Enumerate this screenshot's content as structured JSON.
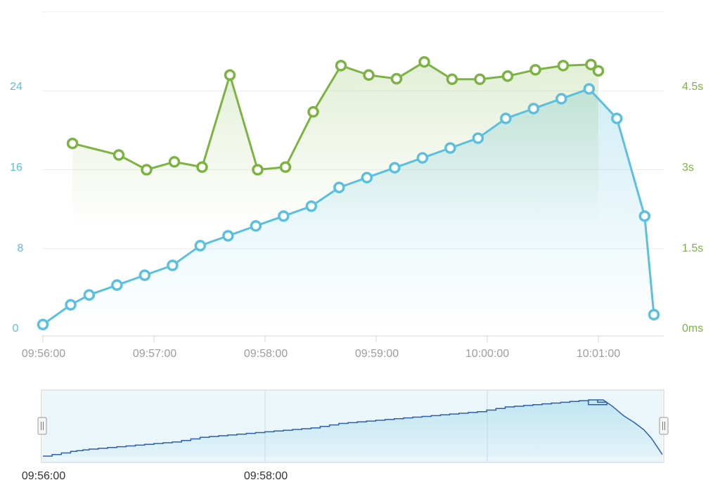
{
  "chart_data": [
    {
      "type": "line",
      "title": "",
      "x_labels": [
        "09:56:00",
        "09:57:00",
        "09:58:00",
        "09:59:00",
        "10:00:00",
        "10:01:00"
      ],
      "x_range_seconds": [
        0,
        300
      ],
      "y_left": {
        "ticks": [
          "0",
          "8",
          "16",
          "24"
        ],
        "range": [
          0,
          32
        ],
        "color": "#5bc0de"
      },
      "y_right": {
        "ticks": [
          "0ms",
          "1.5s",
          "3s",
          "4.5s"
        ],
        "range_seconds": [
          0,
          6
        ],
        "color": "#7cb342"
      },
      "grid": true,
      "series": [
        {
          "axis": "left",
          "color": "#5bc0de",
          "area": true,
          "points": [
            [
              0,
              0.3
            ],
            [
              15,
              2.3
            ],
            [
              25,
              3.3
            ],
            [
              40,
              4.3
            ],
            [
              55,
              5.3
            ],
            [
              70,
              6.3
            ],
            [
              85,
              8.3
            ],
            [
              100,
              9.3
            ],
            [
              115,
              10.3
            ],
            [
              130,
              11.3
            ],
            [
              145,
              12.3
            ],
            [
              160,
              14.2
            ],
            [
              175,
              15.2
            ],
            [
              190,
              16.2
            ],
            [
              205,
              17.2
            ],
            [
              220,
              18.2
            ],
            [
              235,
              19.2
            ],
            [
              250,
              21.2
            ],
            [
              265,
              22.2
            ],
            [
              280,
              23.2
            ],
            [
              295,
              24.2
            ],
            [
              310,
              21.2
            ],
            [
              325,
              11.3
            ],
            [
              330,
              1.3
            ]
          ]
        },
        {
          "axis": "right",
          "color": "#7cb342",
          "area": true,
          "points": [
            [
              16,
              3.5
            ],
            [
              41,
              3.28
            ],
            [
              56,
              3.0
            ],
            [
              71,
              3.15
            ],
            [
              86,
              3.05
            ],
            [
              101,
              4.8
            ],
            [
              116,
              3.0
            ],
            [
              131,
              3.05
            ],
            [
              146,
              4.1
            ],
            [
              161,
              4.98
            ],
            [
              176,
              4.8
            ],
            [
              191,
              4.73
            ],
            [
              206,
              5.05
            ],
            [
              221,
              4.72
            ],
            [
              236,
              4.72
            ],
            [
              251,
              4.78
            ],
            [
              266,
              4.9
            ],
            [
              281,
              4.98
            ],
            [
              296,
              5.0
            ],
            [
              300,
              4.88
            ]
          ]
        }
      ],
      "navigator": {
        "x_labels": [
          "09:56:00",
          "09:58:00"
        ],
        "series_color": "#2e5fa8"
      }
    }
  ]
}
